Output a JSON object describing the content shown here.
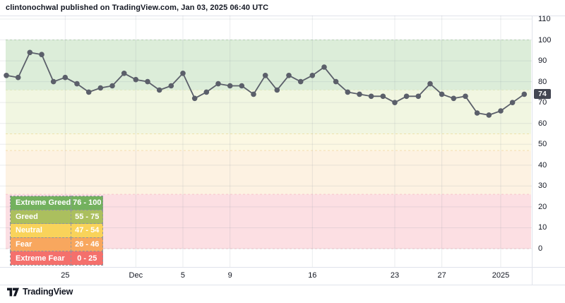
{
  "header": {
    "attribution": "clintonochwal published on TradingView.com, Jan 03, 2025 06:40 UTC"
  },
  "footer": {
    "brand": "TradingView"
  },
  "colors": {
    "line": "#5b5f6a",
    "marker": "#5b5f6a",
    "badge_bg": "#434651",
    "badge_text": "#ffffff",
    "axis_text": "#131722",
    "grid": "rgba(140,148,160,0.18)",
    "border": "#e0e3eb"
  },
  "price_axis": {
    "ticks": [
      110,
      100,
      90,
      80,
      70,
      60,
      50,
      40,
      30,
      20,
      10,
      0
    ],
    "badge_value": "74"
  },
  "time_axis": {
    "ticks": [
      {
        "label": "25",
        "index": 5
      },
      {
        "label": "Dec",
        "index": 11
      },
      {
        "label": "5",
        "index": 15
      },
      {
        "label": "9",
        "index": 19
      },
      {
        "label": "16",
        "index": 26
      },
      {
        "label": "23",
        "index": 33
      },
      {
        "label": "27",
        "index": 37
      },
      {
        "label": "2025",
        "index": 42
      }
    ]
  },
  "legend": {
    "rows": [
      {
        "label": "Extreme Greed",
        "range": "76 - 100",
        "color": "#73b15e"
      },
      {
        "label": "Greed",
        "range": "55 - 75",
        "color": "#abbf5e"
      },
      {
        "label": "Neutral",
        "range": "47 - 54",
        "color": "#f9d35a"
      },
      {
        "label": "Fear",
        "range": "26 - 46",
        "color": "#f8a75e"
      },
      {
        "label": "Extreme Fear",
        "range": "0 - 25",
        "color": "#f4706c"
      }
    ]
  },
  "chart_data": {
    "type": "line",
    "series": [
      {
        "name": "fear-greed-index",
        "values": [
          83,
          82,
          94,
          93,
          80,
          82,
          79,
          75,
          77,
          78,
          84,
          81,
          80,
          76,
          78,
          84,
          72,
          75,
          79,
          78,
          78,
          74,
          83,
          76,
          83,
          80,
          83,
          87,
          80,
          75,
          74,
          73,
          73,
          70,
          73,
          73,
          79,
          74,
          72,
          73,
          65,
          64,
          66,
          70,
          74
        ]
      }
    ],
    "x_tick_labels": [
      "25",
      "Dec",
      "5",
      "9",
      "16",
      "23",
      "27",
      "2025"
    ],
    "ylim": [
      0,
      110
    ],
    "y_tick_step": 10,
    "last_value": 74,
    "grid": true,
    "legend_position": "bottom-left",
    "bands": [
      {
        "name": "Extreme Greed",
        "range": [
          76,
          100
        ],
        "color": "#dcedd9",
        "edge": "#bedbb6"
      },
      {
        "name": "Greed",
        "range": [
          55,
          76
        ],
        "color": "#f1f6e1",
        "edge": "#e0e8c2"
      },
      {
        "name": "Neutral",
        "range": [
          47,
          55
        ],
        "color": "#fcf8e3",
        "edge": "#ece2ad"
      },
      {
        "name": "Fear",
        "range": [
          26,
          47
        ],
        "color": "#fdf2e2",
        "edge": "#f4ddb0"
      },
      {
        "name": "Extreme Fear",
        "range": [
          0,
          26
        ],
        "color": "#fcdfe3",
        "edge": "#f6c6cc"
      }
    ]
  }
}
